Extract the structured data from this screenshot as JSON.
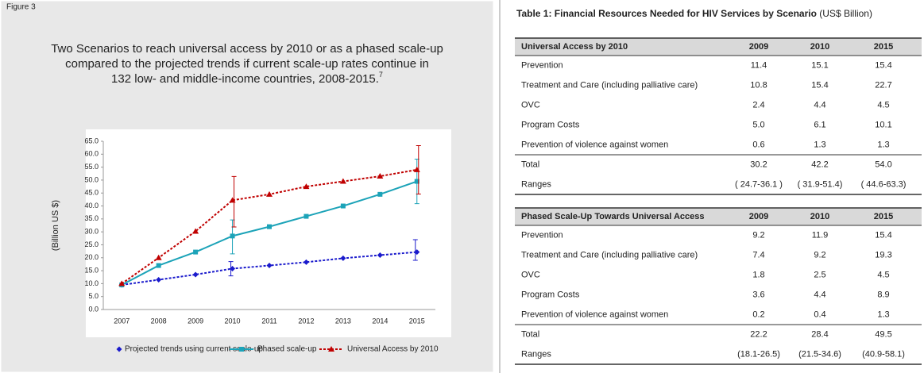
{
  "chart_data": {
    "type": "line",
    "figure_label": "Figure 3",
    "title_lines": [
      "Two Scenarios to reach universal access by 2010 or as a phased scale-up",
      "compared to the projected trends if current scale-up rates continue in",
      "132 low- and middle-income countries, 2008-2015."
    ],
    "title_note": "7",
    "ylabel": "(Billion US $)",
    "categories": [
      "2007",
      "2008",
      "2009",
      "2010",
      "2011",
      "2012",
      "2013",
      "2014",
      "2015"
    ],
    "ylim": [
      0,
      65
    ],
    "yticks": [
      {
        "value": 0,
        "label": "0.0"
      },
      {
        "value": 5,
        "label": "5.0"
      },
      {
        "value": 10,
        "label": "10.0"
      },
      {
        "value": 15,
        "label": "15.0"
      },
      {
        "value": 20,
        "label": "20.0"
      },
      {
        "value": 25,
        "label": "25.0"
      },
      {
        "value": 30,
        "label": "30.0"
      },
      {
        "value": 35,
        "label": "35.0"
      },
      {
        "value": 40,
        "label": "40.0"
      },
      {
        "value": 45,
        "label": "45.0"
      },
      {
        "value": 50,
        "label": "50.0"
      },
      {
        "value": 55,
        "label": "55.0"
      },
      {
        "value": 60,
        "label": "60.0"
      },
      {
        "value": 65,
        "label": "65.0"
      }
    ],
    "grid": false,
    "series": [
      {
        "name": "Projected trends using current scale-up",
        "color": "#1a1acc",
        "marker": "diamond",
        "dash": true,
        "values": [
          9.5,
          11.5,
          13.5,
          15.8,
          17,
          18.3,
          19.8,
          21,
          22.2
        ],
        "ranges": [
          null,
          null,
          null,
          [
            13,
            18.5
          ],
          null,
          null,
          null,
          null,
          [
            19,
            27
          ]
        ]
      },
      {
        "name": "Phased scale-up",
        "color": "#1ca3b8",
        "marker": "square",
        "dash": false,
        "values": [
          9.5,
          17,
          22.2,
          28.4,
          32,
          36,
          40,
          44.5,
          49.5
        ],
        "ranges": [
          null,
          null,
          null,
          [
            21.5,
            34.6
          ],
          null,
          null,
          null,
          null,
          [
            40.9,
            58.1
          ]
        ]
      },
      {
        "name": "Universal Access by 2010",
        "color": "#c00000",
        "marker": "triangle",
        "dash": true,
        "values": [
          10,
          20,
          30.2,
          42.2,
          44.5,
          47.5,
          49.5,
          51.5,
          54
        ],
        "ranges": [
          null,
          null,
          null,
          [
            31.9,
            51.4
          ],
          null,
          null,
          null,
          null,
          [
            44.6,
            63.3
          ]
        ]
      }
    ]
  },
  "table": {
    "title": "Table 1: Financial Resources Needed for HIV Services by Scenario",
    "unit": " (US$ Billion)",
    "sections": [
      {
        "header": [
          "Universal Access by 2010",
          "2009",
          "2010",
          "2015"
        ],
        "rows": [
          [
            "Prevention",
            "11.4",
            "15.1",
            "15.4"
          ],
          [
            "Treatment and Care (including palliative care)",
            "10.8",
            "15.4",
            "22.7"
          ],
          [
            "OVC",
            "2.4",
            "4.4",
            "4.5"
          ],
          [
            "Program Costs",
            "5.0",
            "6.1",
            "10.1"
          ],
          [
            "Prevention of violence against women",
            "0.6",
            "1.3",
            "1.3"
          ],
          [
            "Total",
            "30.2",
            "42.2",
            "54.0"
          ],
          [
            "Ranges",
            "( 24.7-36.1 )",
            "( 31.9-51.4)",
            "( 44.6-63.3)"
          ]
        ]
      },
      {
        "header": [
          "Phased Scale-Up Towards Universal Access",
          "2009",
          "2010",
          "2015"
        ],
        "rows": [
          [
            "Prevention",
            "9.2",
            "11.9",
            "15.4"
          ],
          [
            "Treatment and Care (including palliative care)",
            "7.4",
            "9.2",
            "19.3"
          ],
          [
            "OVC",
            "1.8",
            "2.5",
            "4.5"
          ],
          [
            "Program Costs",
            "3.6",
            "4.4",
            "8.9"
          ],
          [
            "Prevention of violence against women",
            "0.2",
            "0.4",
            "1.3"
          ],
          [
            "Total",
            "22.2",
            "28.4",
            "49.5"
          ],
          [
            "Ranges",
            "(18.1-26.5)",
            "(21.5-34.6)",
            "(40.9-58.1)"
          ]
        ]
      }
    ]
  }
}
